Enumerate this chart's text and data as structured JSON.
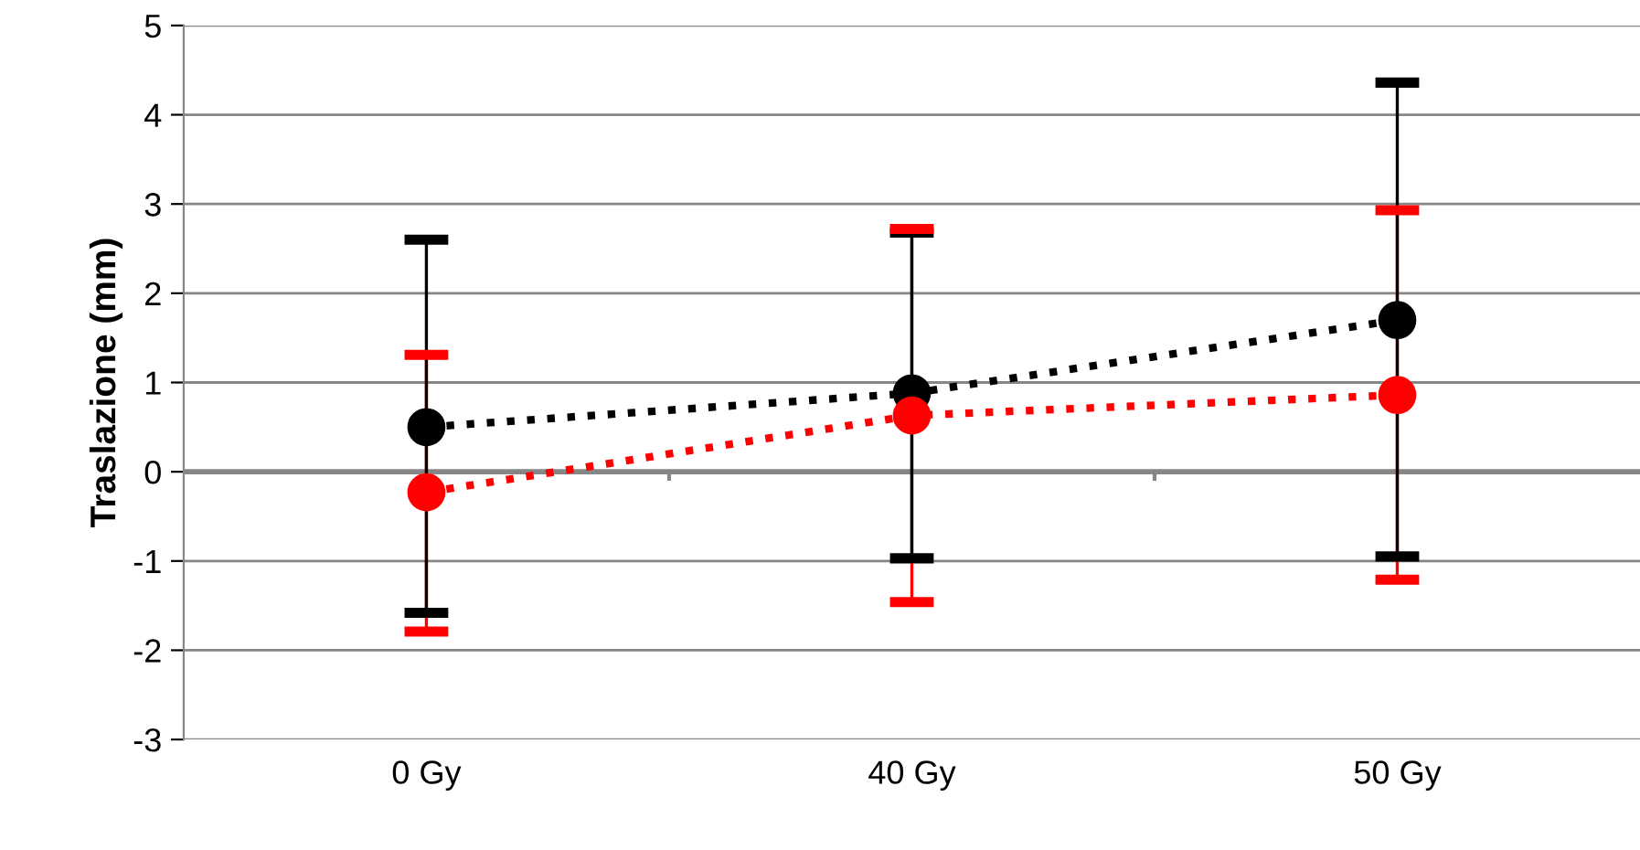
{
  "chart_data": {
    "type": "line",
    "ylabel": "Traslazione (mm)",
    "categories": [
      "0 Gy",
      "40 Gy",
      "50 Gy"
    ],
    "series": [
      {
        "color": "#000000",
        "values": [
          0.5,
          0.88,
          1.7
        ],
        "errors": [
          [
            -1.58,
            2.6
          ],
          [
            -0.97,
            2.68
          ],
          [
            -0.95,
            4.36
          ]
        ]
      },
      {
        "color": "#ff0000",
        "values": [
          -0.23,
          0.63,
          0.86
        ],
        "errors": [
          [
            -1.79,
            1.31
          ],
          [
            -1.46,
            2.72
          ],
          [
            -1.21,
            2.93
          ]
        ]
      }
    ],
    "ylim": [
      -3,
      5
    ],
    "yticks": [
      -3,
      -2,
      -1,
      0,
      1,
      2,
      3,
      4,
      5
    ],
    "grid": "y",
    "marker": "circle",
    "line_style": "dotted",
    "legend": false
  }
}
